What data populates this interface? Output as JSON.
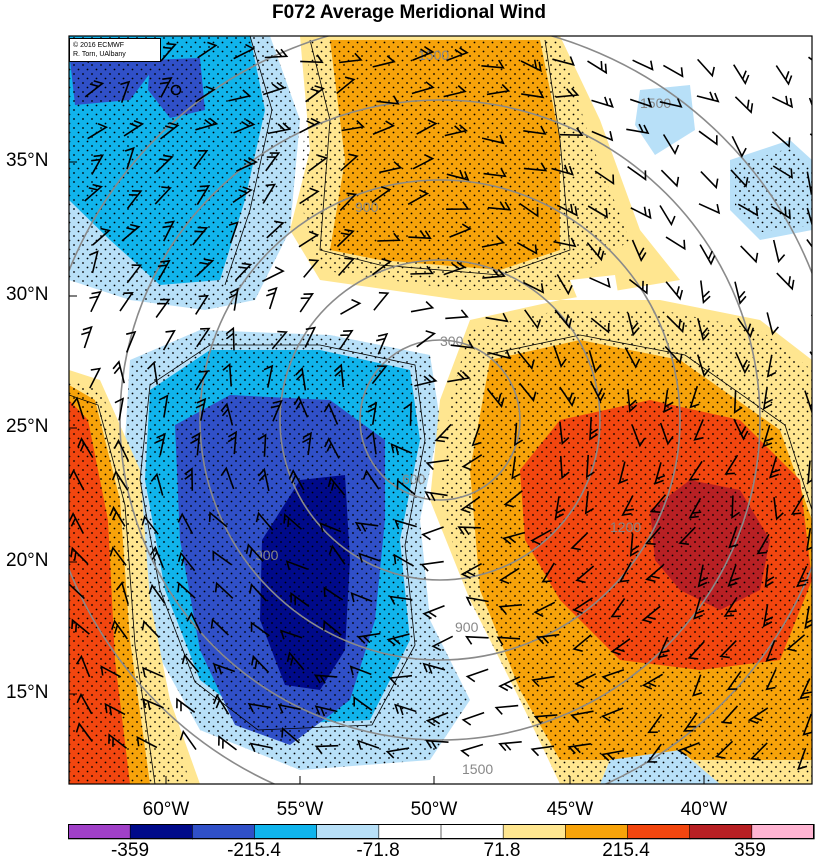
{
  "title": "F072 Average Meridional Wind",
  "credit": {
    "line1": "© 2016 ECMWF",
    "line2": "R. Torn, UAlbany"
  },
  "lat_labels": [
    "35°N",
    "30°N",
    "25°N",
    "20°N",
    "15°N"
  ],
  "lon_labels": [
    "60°W",
    "55°W",
    "50°W",
    "45°W",
    "40°W"
  ],
  "range_rings": [
    {
      "label": "300"
    },
    {
      "label": "600"
    },
    {
      "label": "900"
    },
    {
      "label": "1200"
    },
    {
      "label": "1500"
    }
  ],
  "colorbar": {
    "tick_labels": [
      "-359",
      "-215.4",
      "-71.8",
      "71.8",
      "215.4",
      "359"
    ],
    "colors": [
      "#a040c8",
      "#000a8a",
      "#3050c8",
      "#10b4ec",
      "#b8e0f8",
      "#ffffff",
      "#ffffff",
      "#ffe690",
      "#f7a30a",
      "#f2460f",
      "#b82024",
      "#ffb4d2"
    ]
  },
  "field_colors": {
    "strong_neg": "#000a8a",
    "mid_neg": "#3050c8",
    "neg": "#10b4ec",
    "weak_neg": "#b8e0f8",
    "weak_pos": "#ffe690",
    "pos": "#f7a30a",
    "mid_pos": "#f2460f",
    "strong_pos": "#b82024"
  }
}
